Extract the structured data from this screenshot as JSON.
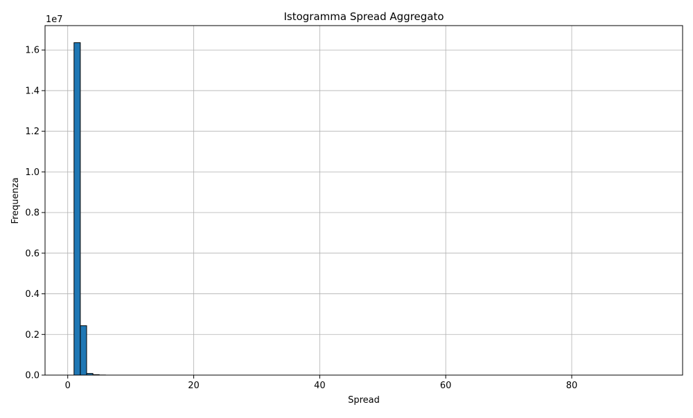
{
  "chart_data": {
    "type": "bar",
    "title": "Istogramma Spread Aggregato",
    "xlabel": "Spread",
    "ylabel": "Frequenza",
    "y_scale_label": "1e7",
    "xlim": [
      -3.6,
      97.6
    ],
    "ylim": [
      0,
      1.72
    ],
    "x_ticks": [
      0,
      20,
      40,
      60,
      80
    ],
    "x_tick_labels": [
      "0",
      "20",
      "40",
      "60",
      "80"
    ],
    "y_ticks": [
      0,
      0.2,
      0.4,
      0.6,
      0.8,
      1.0,
      1.2,
      1.4,
      1.6
    ],
    "y_tick_labels": [
      "0.0",
      "0.2",
      "0.4",
      "0.6",
      "0.8",
      "1.0",
      "1.2",
      "1.4",
      "1.6"
    ],
    "grid": true,
    "legend": "none",
    "bar_color": "#1f77b4",
    "edge_color": "#000000",
    "bins": [
      {
        "x0": 1.0,
        "x1": 2.0,
        "value": 1.636
      },
      {
        "x0": 2.0,
        "x1": 3.0,
        "value": 0.243
      },
      {
        "x0": 3.0,
        "x1": 4.0,
        "value": 0.008
      },
      {
        "x0": 4.0,
        "x1": 5.0,
        "value": 0.002
      },
      {
        "x0": 5.0,
        "x1": 6.0,
        "value": 0.0005
      },
      {
        "x0": 6.0,
        "x1": 93.0,
        "value": 0.0
      }
    ]
  }
}
